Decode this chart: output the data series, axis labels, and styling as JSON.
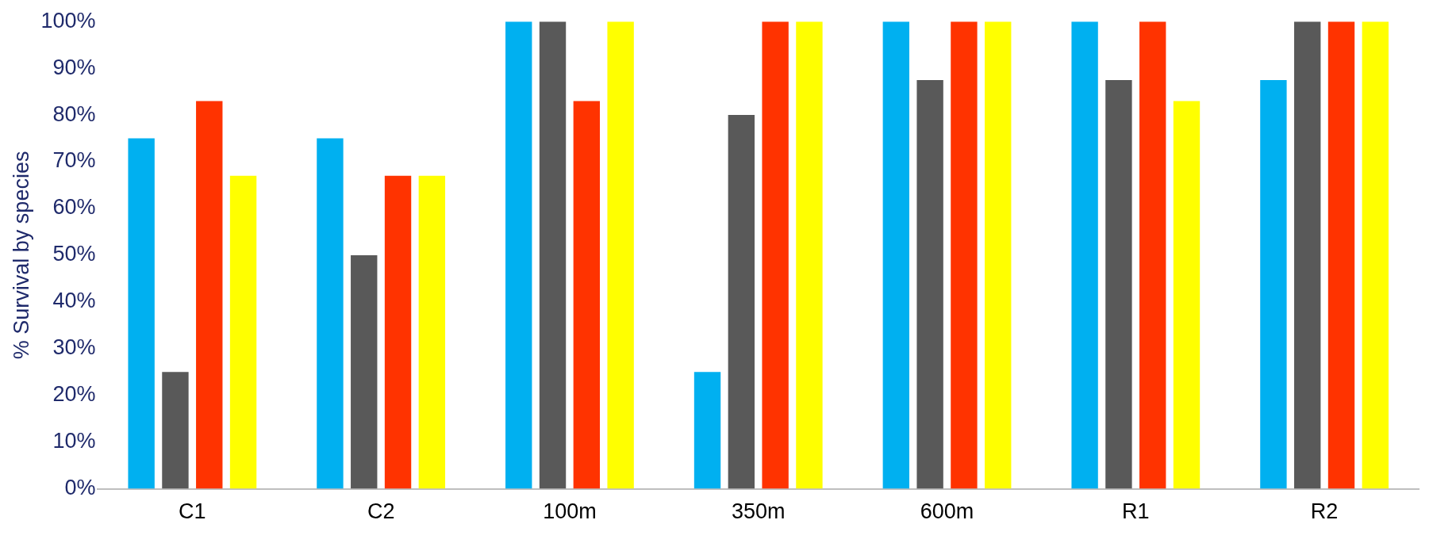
{
  "chart_data": {
    "type": "bar",
    "ylabel": "% Survival by species",
    "categories": [
      "C1",
      "C2",
      "100m",
      "350m",
      "600m",
      "R1",
      "R2"
    ],
    "series": [
      {
        "color": "#00b0f0",
        "values": [
          75,
          75,
          100,
          25,
          100,
          100,
          87.5
        ]
      },
      {
        "color": "#595959",
        "values": [
          25,
          50,
          100,
          80,
          87.5,
          87.5,
          100
        ]
      },
      {
        "color": "#ff3300",
        "values": [
          83,
          67,
          83,
          100,
          100,
          100,
          100
        ]
      },
      {
        "color": "#ffff00",
        "values": [
          67,
          67,
          100,
          100,
          100,
          83,
          100
        ]
      }
    ],
    "ylim": [
      0,
      100
    ],
    "yticks": [
      {
        "value": 0,
        "label": "0%"
      },
      {
        "value": 10,
        "label": "10%"
      },
      {
        "value": 20,
        "label": "20%"
      },
      {
        "value": 30,
        "label": "30%"
      },
      {
        "value": 40,
        "label": "40%"
      },
      {
        "value": 50,
        "label": "50%"
      },
      {
        "value": 60,
        "label": "60%"
      },
      {
        "value": 70,
        "label": "70%"
      },
      {
        "value": 80,
        "label": "80%"
      },
      {
        "value": 90,
        "label": "90%"
      },
      {
        "value": 100,
        "label": "100%"
      }
    ],
    "grid": false,
    "legend": false
  }
}
